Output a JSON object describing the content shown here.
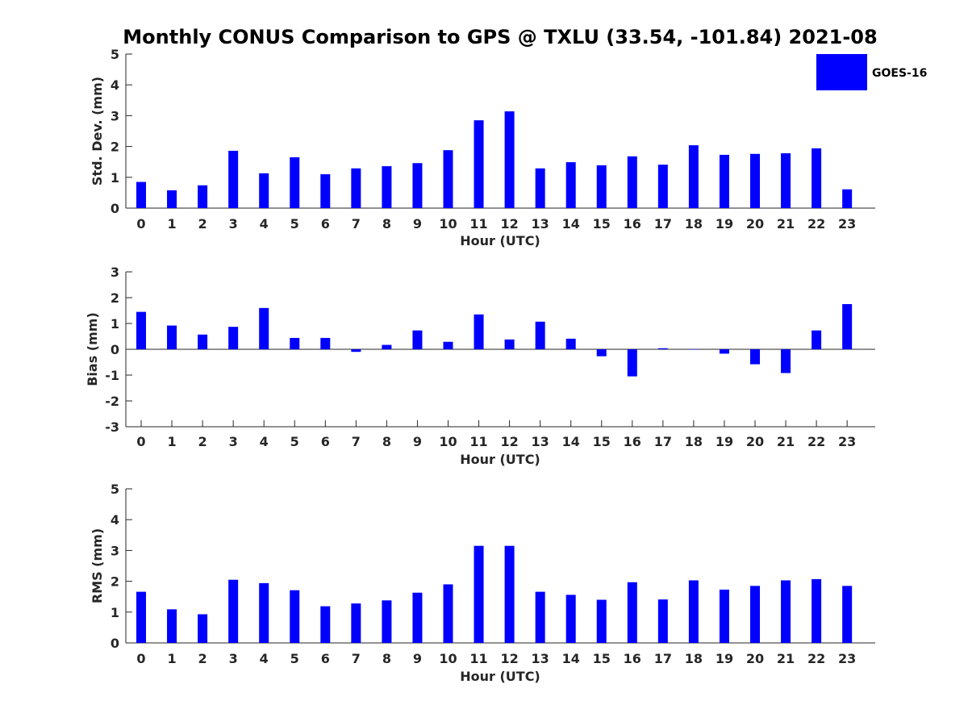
{
  "title": "Monthly CONUS Comparison to GPS @ TXLU (33.54, -101.84) 2021-08",
  "colors": {
    "bar": "#0000ff",
    "axis": "#262626"
  },
  "legend": {
    "label": "GOES-16",
    "placement": "top-right"
  },
  "chart_data": [
    {
      "type": "bar",
      "series_name": "GOES-16",
      "categories": [
        "0",
        "1",
        "2",
        "3",
        "4",
        "5",
        "6",
        "7",
        "8",
        "9",
        "10",
        "11",
        "12",
        "13",
        "14",
        "15",
        "16",
        "17",
        "18",
        "19",
        "20",
        "21",
        "22",
        "23"
      ],
      "values": [
        0.85,
        0.58,
        0.74,
        1.86,
        1.13,
        1.65,
        1.1,
        1.29,
        1.36,
        1.46,
        1.88,
        2.85,
        3.14,
        1.29,
        1.49,
        1.39,
        1.68,
        1.41,
        2.04,
        1.73,
        1.76,
        1.78,
        1.94,
        0.61
      ],
      "xlabel": "Hour (UTC)",
      "ylabel": "Std. Dev. (mm)",
      "ylim": [
        0,
        5
      ],
      "yticks": [
        "0",
        "1",
        "2",
        "3",
        "4",
        "5"
      ]
    },
    {
      "type": "bar",
      "series_name": "GOES-16",
      "categories": [
        "0",
        "1",
        "2",
        "3",
        "4",
        "5",
        "6",
        "7",
        "8",
        "9",
        "10",
        "11",
        "12",
        "13",
        "14",
        "15",
        "16",
        "17",
        "18",
        "19",
        "20",
        "21",
        "22",
        "23"
      ],
      "values": [
        1.45,
        0.92,
        0.57,
        0.87,
        1.6,
        0.44,
        0.44,
        -0.1,
        0.17,
        0.73,
        0.29,
        1.35,
        0.38,
        1.07,
        0.41,
        -0.27,
        -1.05,
        0.04,
        0.0,
        -0.17,
        -0.58,
        -0.92,
        0.73,
        1.75
      ],
      "xlabel": "Hour (UTC)",
      "ylabel": "Bias (mm)",
      "ylim": [
        -3,
        3
      ],
      "yticks": [
        "-3",
        "-2",
        "-1",
        "0",
        "1",
        "2",
        "3"
      ]
    },
    {
      "type": "bar",
      "series_name": "GOES-16",
      "categories": [
        "0",
        "1",
        "2",
        "3",
        "4",
        "5",
        "6",
        "7",
        "8",
        "9",
        "10",
        "11",
        "12",
        "13",
        "14",
        "15",
        "16",
        "17",
        "18",
        "19",
        "20",
        "21",
        "22",
        "23"
      ],
      "values": [
        1.66,
        1.09,
        0.93,
        2.05,
        1.94,
        1.71,
        1.19,
        1.28,
        1.38,
        1.63,
        1.9,
        3.15,
        3.15,
        1.66,
        1.56,
        1.4,
        1.97,
        1.41,
        2.03,
        1.73,
        1.85,
        2.03,
        2.07,
        1.85
      ],
      "xlabel": "Hour (UTC)",
      "ylabel": "RMS (mm)",
      "ylim": [
        0,
        5
      ],
      "yticks": [
        "0",
        "1",
        "2",
        "3",
        "4",
        "5"
      ]
    }
  ]
}
